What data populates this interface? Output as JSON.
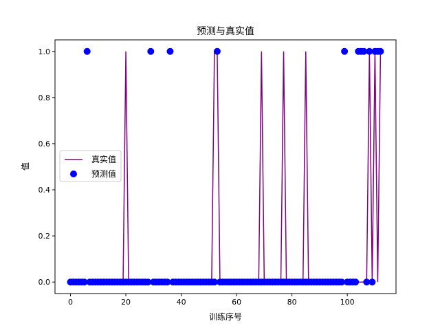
{
  "chart_data": {
    "type": "line+scatter",
    "title": "预测与真实值",
    "xlabel": "训练序号",
    "ylabel": "值",
    "xlim": [
      -5.6,
      117.6
    ],
    "ylim": [
      -0.05,
      1.05
    ],
    "xticks": [
      0,
      20,
      40,
      60,
      80,
      100
    ],
    "yticks": [
      0.0,
      0.2,
      0.4,
      0.6,
      0.8,
      1.0
    ],
    "ytick_labels": [
      "0.0",
      "0.2",
      "0.4",
      "0.6",
      "0.8",
      "1.0"
    ],
    "legend": {
      "location": "center-left",
      "entries": [
        "真实值",
        "预测值"
      ]
    },
    "series": [
      {
        "name": "真实值",
        "kind": "line",
        "color": "#800080",
        "x": [
          0,
          1,
          2,
          3,
          4,
          5,
          6,
          7,
          8,
          9,
          10,
          11,
          12,
          13,
          14,
          15,
          16,
          17,
          18,
          19,
          20,
          21,
          22,
          23,
          24,
          25,
          26,
          27,
          28,
          29,
          30,
          31,
          32,
          33,
          34,
          35,
          36,
          37,
          38,
          39,
          40,
          41,
          42,
          43,
          44,
          45,
          46,
          47,
          48,
          49,
          50,
          51,
          52,
          53,
          54,
          55,
          56,
          57,
          58,
          59,
          60,
          61,
          62,
          63,
          64,
          65,
          66,
          67,
          68,
          69,
          70,
          71,
          72,
          73,
          74,
          75,
          76,
          77,
          78,
          79,
          80,
          81,
          82,
          83,
          84,
          85,
          86,
          87,
          88,
          89,
          90,
          91,
          92,
          93,
          94,
          95,
          96,
          97,
          98,
          99,
          100,
          101,
          102,
          103,
          104,
          105,
          106,
          107,
          108,
          109,
          110,
          111,
          112
        ],
        "values": [
          0,
          0,
          0,
          0,
          0,
          0,
          0,
          0,
          0,
          0,
          0,
          0,
          0,
          0,
          0,
          0,
          0,
          0,
          0,
          0,
          1,
          0,
          0,
          0,
          0,
          0,
          0,
          0,
          0,
          0,
          0,
          0,
          0,
          0,
          0,
          0,
          0,
          0,
          0,
          0,
          0,
          0,
          0,
          0,
          0,
          0,
          0,
          0,
          0,
          0,
          0,
          0,
          1,
          1,
          0,
          0,
          0,
          0,
          0,
          0,
          0,
          0,
          0,
          0,
          0,
          0,
          0,
          0,
          0,
          1,
          0,
          0,
          0,
          0,
          0,
          0,
          0,
          1,
          0,
          0,
          0,
          0,
          0,
          0,
          0,
          1,
          0,
          0,
          0,
          0,
          0,
          0,
          0,
          0,
          0,
          0,
          0,
          0,
          0,
          0,
          0,
          0,
          0,
          0,
          0,
          0,
          0,
          0,
          1,
          0,
          1,
          0,
          1
        ]
      },
      {
        "name": "预测值",
        "kind": "scatter",
        "color": "#0000ff",
        "x": [
          0,
          1,
          2,
          3,
          4,
          5,
          6,
          7,
          8,
          9,
          10,
          11,
          12,
          13,
          14,
          15,
          16,
          17,
          18,
          19,
          20,
          21,
          22,
          23,
          24,
          25,
          26,
          27,
          28,
          29,
          30,
          31,
          32,
          33,
          34,
          35,
          36,
          37,
          38,
          39,
          40,
          41,
          42,
          43,
          44,
          45,
          46,
          47,
          48,
          49,
          50,
          51,
          52,
          53,
          54,
          55,
          56,
          57,
          58,
          59,
          60,
          61,
          62,
          63,
          64,
          65,
          66,
          67,
          68,
          69,
          70,
          71,
          72,
          73,
          74,
          75,
          76,
          77,
          78,
          79,
          80,
          81,
          82,
          83,
          84,
          85,
          86,
          87,
          88,
          89,
          90,
          91,
          92,
          93,
          94,
          95,
          96,
          97,
          98,
          99,
          100,
          101,
          102,
          103,
          104,
          105,
          106,
          107,
          108,
          109,
          110,
          111,
          112
        ],
        "values": [
          0,
          0,
          0,
          0,
          0,
          0,
          1,
          0,
          0,
          0,
          0,
          0,
          0,
          0,
          0,
          0,
          0,
          0,
          0,
          0,
          0,
          0,
          0,
          0,
          0,
          0,
          0,
          0,
          0,
          1,
          0,
          0,
          0,
          0,
          0,
          0,
          1,
          0,
          0,
          0,
          0,
          0,
          0,
          0,
          0,
          0,
          0,
          0,
          0,
          0,
          0,
          0,
          0,
          1,
          0,
          0,
          0,
          0,
          0,
          0,
          0,
          0,
          0,
          0,
          0,
          0,
          0,
          0,
          0,
          0,
          0,
          0,
          0,
          0,
          0,
          0,
          0,
          0,
          0,
          0,
          0,
          0,
          0,
          0,
          0,
          0,
          0,
          0,
          0,
          0,
          0,
          0,
          0,
          0,
          0,
          0,
          0,
          0,
          0,
          1,
          0,
          0,
          0,
          0,
          1,
          1,
          1,
          0,
          1,
          0,
          1,
          1,
          1
        ]
      }
    ]
  }
}
